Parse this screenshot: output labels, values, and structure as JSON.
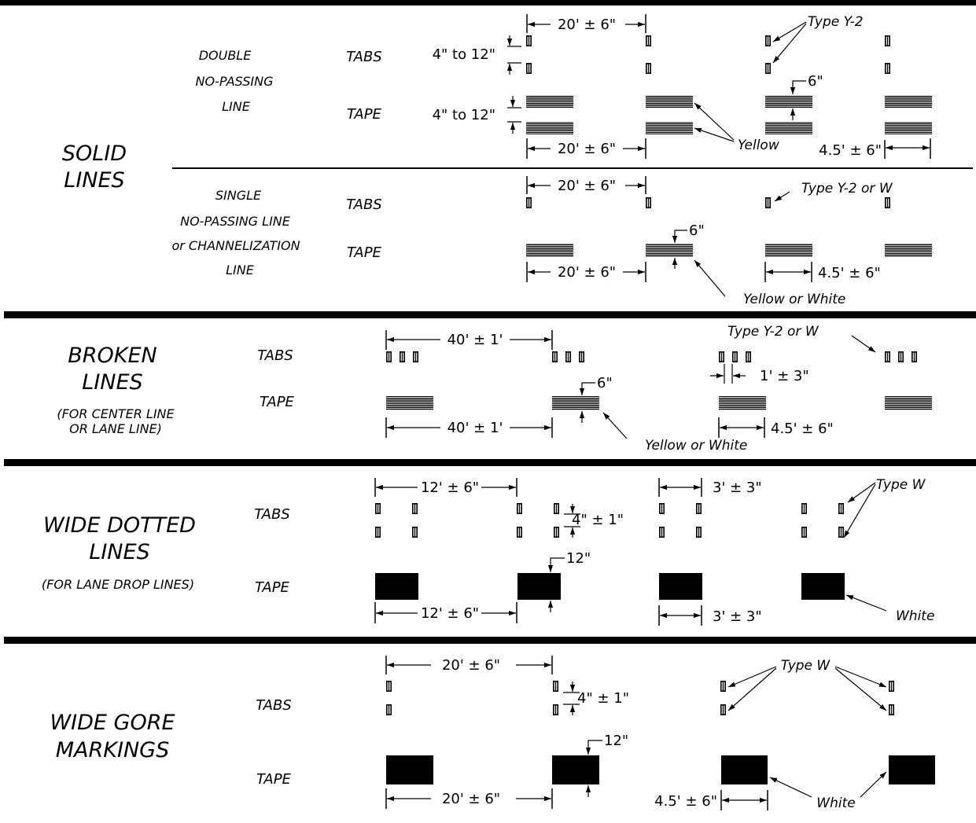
{
  "colors": {
    "ink": "#000000",
    "paper": "#ffffff"
  },
  "sections": {
    "solid": {
      "title1": "SOLID",
      "title2": "LINES",
      "double": {
        "name1": "DOUBLE",
        "name2": "NO-PASSING",
        "name3": "LINE",
        "tabs_label": "TABS",
        "tape_label": "TAPE",
        "dim_top": "20' ± 6\"",
        "tabs_gap": "4\" to 12\"",
        "tape_gap": "4\" to 12\"",
        "dim_bottom": "20' ± 6\"",
        "tab_type": "Type Y-2",
        "width": "6\"",
        "color_note": "Yellow",
        "tape_length": "4.5' ± 6\""
      },
      "single": {
        "name1": "SINGLE",
        "name2": "NO-PASSING LINE",
        "name3": "or CHANNELIZATION",
        "name4": "LINE",
        "tabs_label": "TABS",
        "tape_label": "TAPE",
        "dim_top": "20' ± 6\"",
        "tab_type": "Type Y-2 or W",
        "width": "6\"",
        "dim_bottom": "20' ± 6\"",
        "tape_length": "4.5' ± 6\"",
        "color_note": "Yellow or White"
      }
    },
    "broken": {
      "title1": "BROKEN",
      "title2": "LINES",
      "sub1": "(FOR CENTER LINE",
      "sub2": "OR LANE LINE)",
      "tabs_label": "TABS",
      "tape_label": "TAPE",
      "dim_top": "40' ± 1'",
      "tab_type": "Type Y-2 or W",
      "tab_spacing": "1' ± 3\"",
      "width": "6\"",
      "dim_bottom": "40' ± 1'",
      "tape_length": "4.5' ± 6\"",
      "color_note": "Yellow or White"
    },
    "dotted": {
      "title1": "WIDE DOTTED",
      "title2": "LINES",
      "sub1": "(FOR LANE DROP LINES)",
      "tabs_label": "TABS",
      "tape_label": "TAPE",
      "dim_top": "12' ± 6\"",
      "tab_gap": "4\" ± 1\"",
      "tab_length": "3' ± 3\"",
      "tab_type": "Type W",
      "width": "12\"",
      "dim_bottom": "12' ± 6\"",
      "tape_length": "3' ± 3\"",
      "color_note": "White"
    },
    "gore": {
      "title1": "WIDE GORE",
      "title2": "MARKINGS",
      "tabs_label": "TABS",
      "tape_label": "TAPE",
      "dim_top": "20' ± 6\"",
      "tab_gap": "4\" ± 1\"",
      "tab_type": "Type W",
      "width": "12\"",
      "dim_bottom": "20' ± 6\"",
      "tape_length": "4.5' ± 6\"",
      "color_note": "White"
    }
  }
}
